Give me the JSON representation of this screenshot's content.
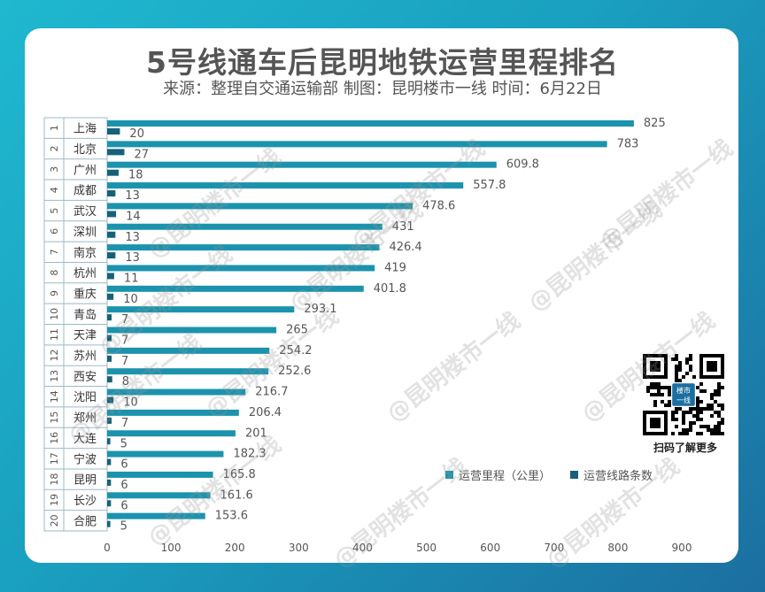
{
  "colors": {
    "mileage": "#1c93ad",
    "lines": "#16617a",
    "axis_text": "#555555"
  },
  "title": "5号线通车后昆明地铁运营里程排名",
  "subtitle": "来源：整理自交通运输部 制图：昆明楼市一线 时间：6月22日",
  "watermark": "@昆明楼市一线",
  "qr": {
    "icon": "qr-code-icon",
    "center_text": "楼市一线",
    "caption": "扫码了解更多"
  },
  "chart_data": {
    "type": "bar",
    "orientation": "horizontal",
    "ranks": [
      "1",
      "2",
      "3",
      "4",
      "5",
      "6",
      "7",
      "8",
      "9",
      "10",
      "11",
      "12",
      "13",
      "14",
      "15",
      "16",
      "17",
      "18",
      "19",
      "20"
    ],
    "categories": [
      "上海",
      "北京",
      "广州",
      "成都",
      "武汉",
      "深圳",
      "南京",
      "杭州",
      "重庆",
      "青岛",
      "天津",
      "苏州",
      "西安",
      "沈阳",
      "郑州",
      "大连",
      "宁波",
      "昆明",
      "长沙",
      "合肥"
    ],
    "series": [
      {
        "name": "运营里程（公里）",
        "values": [
          825,
          783,
          609.8,
          557.8,
          478.6,
          431,
          426.4,
          419,
          401.8,
          293.1,
          265,
          254.2,
          252.6,
          216.7,
          206.4,
          201,
          182.3,
          165.8,
          161.6,
          153.6
        ]
      },
      {
        "name": "运营线路条数",
        "values": [
          20,
          27,
          18,
          13,
          14,
          13,
          13,
          11,
          10,
          7,
          7,
          7,
          8,
          10,
          7,
          5,
          6,
          6,
          6,
          5
        ]
      }
    ],
    "xlim": [
      0,
      900
    ],
    "xticks": [
      0,
      100,
      200,
      300,
      400,
      500,
      600,
      700,
      800,
      900
    ],
    "value_labels": {
      "mileage": [
        "825",
        "783",
        "609.8",
        "557.8",
        "478.6",
        "431",
        "426.4",
        "419",
        "401.8",
        "293.1",
        "265",
        "254.2",
        "252.6",
        "216.7",
        "206.4",
        "201",
        "182.3",
        "165.8",
        "161.6",
        "153.6"
      ],
      "lines": [
        "20",
        "27",
        "18",
        "13",
        "14",
        "13",
        "13",
        "11",
        "10",
        "7",
        "7",
        "7",
        "8",
        "10",
        "7",
        "5",
        "6",
        "6",
        "6",
        "5"
      ]
    },
    "legend_position": "bottom-right",
    "grid": false
  }
}
